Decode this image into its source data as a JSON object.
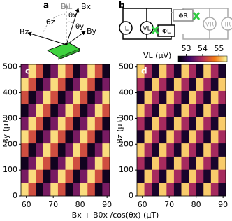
{
  "figure": {
    "panel_a": {
      "label": "a",
      "vectors": [
        "B⊥",
        "Bx",
        "By",
        "Bz"
      ],
      "angles": [
        "θz",
        "θx",
        "θy"
      ]
    },
    "panel_b": {
      "label": "b",
      "elements": [
        "IL",
        "VL",
        "ΦL",
        "ΦR",
        "VR",
        "IR"
      ]
    },
    "colorbar": {
      "label": "VL (μV)",
      "lim": [
        52.5,
        55.5
      ],
      "ticks": [
        53,
        54,
        55
      ]
    },
    "xlabel": "Bx + B0x /cos(θx) (μT)"
  },
  "chart_data": [
    {
      "type": "heatmap",
      "panel": "c",
      "ylabel": "By (μT)",
      "x": [
        59.375,
        62.125,
        64.875,
        67.625,
        70.375,
        73.125,
        75.875,
        78.625,
        81.375,
        84.125,
        86.875,
        89.625
      ],
      "y": [
        25.5,
        76.5,
        127.5,
        178.5,
        229.5,
        280.5,
        331.5,
        382.5,
        433.5,
        484.5
      ],
      "z": [
        [
          55.3,
          54.3,
          52.7,
          53.6,
          55.3,
          54.3,
          52.7,
          53.6,
          55.3,
          54.3,
          52.7,
          53.6
        ],
        [
          53.6,
          55.3,
          54.3,
          52.7,
          53.6,
          55.3,
          54.3,
          52.7,
          53.6,
          55.3,
          54.3,
          52.7
        ],
        [
          52.7,
          53.6,
          55.3,
          54.3,
          52.7,
          53.6,
          55.3,
          54.3,
          52.7,
          53.6,
          55.3,
          54.3
        ],
        [
          54.3,
          52.7,
          53.6,
          55.3,
          54.3,
          52.7,
          53.6,
          55.3,
          54.3,
          52.7,
          53.6,
          55.3
        ],
        [
          55.3,
          54.3,
          52.7,
          53.6,
          55.3,
          54.3,
          52.7,
          53.6,
          55.3,
          54.3,
          52.7,
          53.6
        ],
        [
          53.6,
          55.3,
          54.3,
          52.7,
          53.6,
          55.3,
          54.3,
          52.7,
          53.6,
          55.3,
          54.3,
          52.7
        ],
        [
          52.7,
          53.6,
          55.3,
          54.3,
          52.7,
          53.6,
          55.3,
          54.3,
          52.7,
          53.6,
          55.3,
          54.3
        ],
        [
          54.3,
          52.7,
          53.6,
          55.3,
          54.3,
          52.7,
          53.6,
          55.3,
          54.3,
          52.7,
          53.6,
          55.3
        ],
        [
          55.3,
          54.3,
          52.7,
          53.6,
          55.3,
          54.3,
          52.7,
          53.6,
          55.3,
          54.3,
          52.7,
          53.6
        ],
        [
          53.6,
          55.3,
          54.3,
          52.7,
          53.6,
          55.3,
          54.3,
          52.7,
          53.6,
          55.3,
          54.3,
          52.7
        ]
      ],
      "xlim": [
        58,
        91
      ],
      "ylim": [
        0,
        510
      ],
      "xticks": [
        60,
        70,
        80,
        90
      ],
      "yticks": [
        0,
        100,
        200,
        300,
        400,
        500
      ]
    },
    {
      "type": "heatmap",
      "panel": "d",
      "ylabel": "Bz (μT)",
      "x": [
        59.375,
        62.125,
        64.875,
        67.625,
        70.375,
        73.125,
        75.875,
        78.625,
        81.375,
        84.125,
        86.875,
        89.625
      ],
      "y": [
        25.5,
        76.5,
        127.5,
        178.5,
        229.5,
        280.5,
        331.5,
        382.5,
        433.5,
        484.5
      ],
      "z": [
        [
          55.2,
          53.9,
          52.8,
          55.2,
          53.9,
          52.8,
          55.2,
          53.9,
          52.8,
          55.2,
          53.9,
          52.8
        ],
        [
          52.8,
          55.2,
          53.9,
          52.8,
          55.2,
          53.9,
          52.8,
          55.2,
          53.9,
          52.8,
          55.2,
          53.9
        ],
        [
          53.9,
          52.8,
          55.2,
          53.9,
          52.8,
          55.2,
          53.9,
          52.8,
          55.2,
          53.9,
          52.8,
          55.2
        ],
        [
          55.2,
          53.9,
          52.8,
          55.2,
          53.9,
          52.8,
          55.2,
          53.9,
          52.8,
          55.2,
          53.9,
          52.8
        ],
        [
          52.8,
          55.2,
          53.9,
          52.8,
          55.2,
          53.9,
          52.8,
          55.2,
          53.9,
          52.8,
          55.2,
          53.9
        ],
        [
          53.9,
          52.8,
          55.2,
          53.9,
          52.8,
          55.2,
          53.9,
          52.8,
          55.2,
          53.9,
          52.8,
          55.2
        ],
        [
          55.2,
          53.9,
          52.8,
          55.2,
          53.9,
          52.8,
          55.2,
          53.9,
          52.8,
          55.2,
          53.9,
          52.8
        ],
        [
          52.8,
          55.2,
          53.9,
          52.8,
          55.2,
          53.9,
          52.8,
          55.2,
          53.9,
          52.8,
          55.2,
          53.9
        ],
        [
          53.9,
          52.8,
          55.2,
          53.9,
          52.8,
          55.2,
          53.9,
          52.8,
          55.2,
          53.9,
          52.8,
          55.2
        ],
        [
          55.2,
          53.9,
          52.8,
          55.2,
          53.9,
          52.8,
          55.2,
          53.9,
          52.8,
          55.2,
          53.9,
          52.8
        ]
      ],
      "xlim": [
        58,
        91
      ],
      "ylim": [
        0,
        510
      ],
      "xticks": [
        60,
        70,
        80,
        90
      ],
      "yticks": [
        0,
        100,
        200,
        300,
        400,
        500
      ]
    }
  ]
}
